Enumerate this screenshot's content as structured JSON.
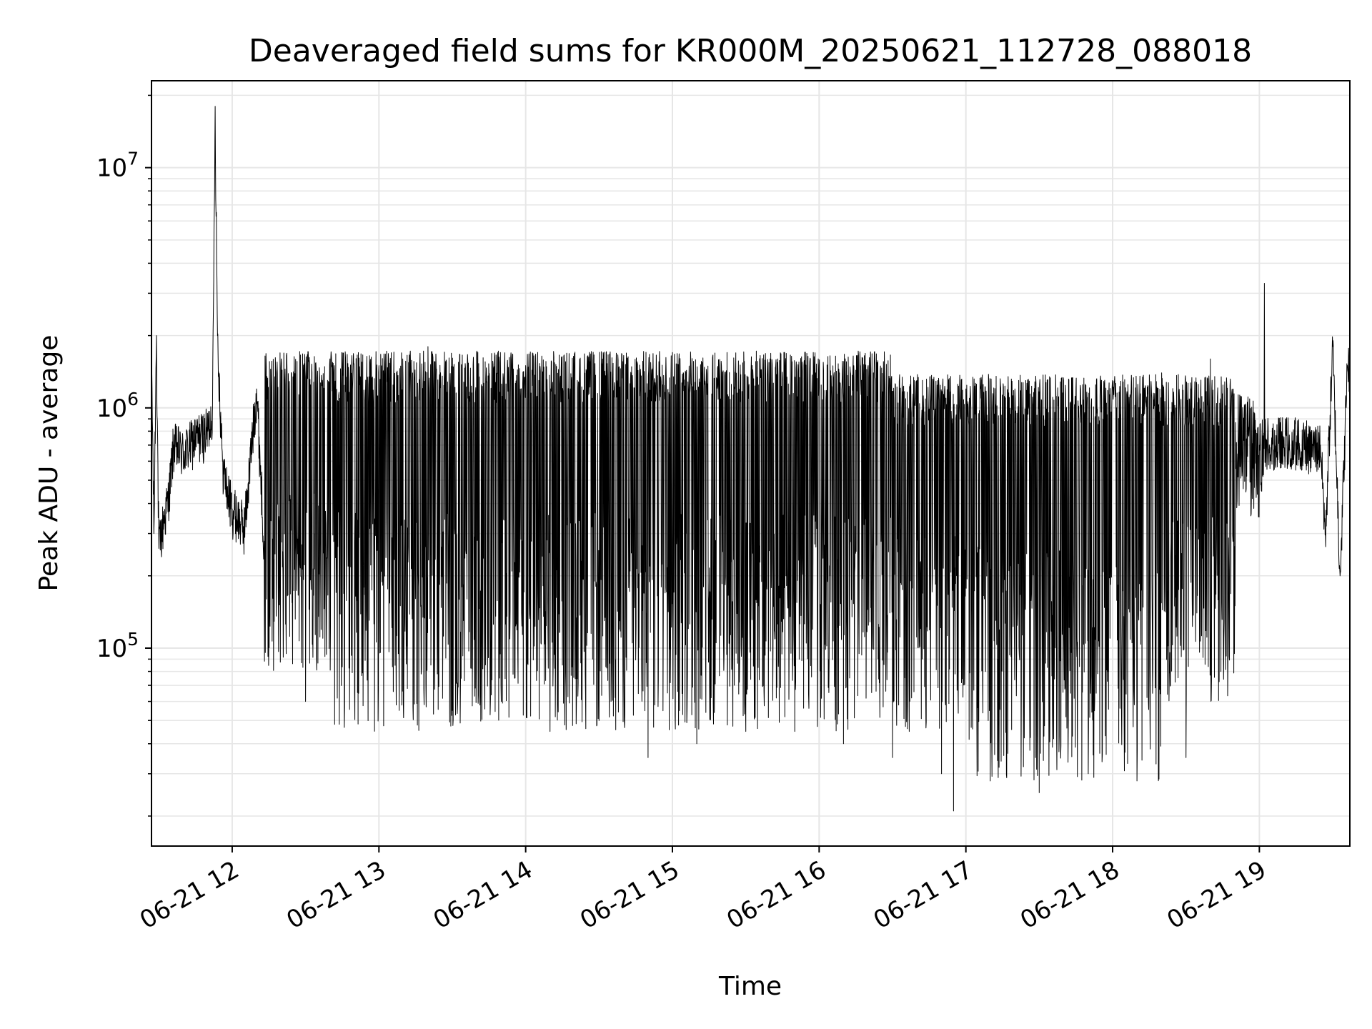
{
  "chart_data": {
    "type": "line",
    "title": "Deaveraged field sums for KR000M_20250621_112728_088018",
    "xlabel": "Time",
    "ylabel": "Peak ADU - average",
    "yscale": "log",
    "ylim": [
      15000,
      23000000
    ],
    "xlim": [
      "2025-06-21 11:27",
      "2025-06-21 19:37"
    ],
    "x_ticks": [
      {
        "value": "2025-06-21 12:00",
        "label": "06-21 12"
      },
      {
        "value": "2025-06-21 13:00",
        "label": "06-21 13"
      },
      {
        "value": "2025-06-21 14:00",
        "label": "06-21 14"
      },
      {
        "value": "2025-06-21 15:00",
        "label": "06-21 15"
      },
      {
        "value": "2025-06-21 16:00",
        "label": "06-21 16"
      },
      {
        "value": "2025-06-21 17:00",
        "label": "06-21 17"
      },
      {
        "value": "2025-06-21 18:00",
        "label": "06-21 18"
      },
      {
        "value": "2025-06-21 19:00",
        "label": "06-21 19"
      }
    ],
    "y_ticks": [
      {
        "value": 100000,
        "base": "10",
        "exp": "5"
      },
      {
        "value": 1000000,
        "base": "10",
        "exp": "6"
      },
      {
        "value": 10000000,
        "base": "10",
        "exp": "7"
      }
    ],
    "grid": true,
    "line_color": "#000000",
    "grid_color": "#e6e6e6",
    "series": [
      {
        "x": [
          "2025-06-21 11:27",
          "2025-06-21 11:28",
          "2025-06-21 11:29",
          "2025-06-21 11:30",
          "2025-06-21 11:32",
          "2025-06-21 11:34",
          "2025-06-21 11:36",
          "2025-06-21 11:40",
          "2025-06-21 11:45",
          "2025-06-21 11:50",
          "2025-06-21 11:52",
          "2025-06-21 11:53",
          "2025-06-21 11:54",
          "2025-06-21 11:56",
          "2025-06-21 11:58",
          "2025-06-21 12:00",
          "2025-06-21 12:05",
          "2025-06-21 12:10",
          "2025-06-21 12:15",
          "2025-06-21 12:20",
          "2025-06-21 12:30",
          "2025-06-21 12:40",
          "2025-06-21 12:50",
          "2025-06-21 13:00",
          "2025-06-21 13:10",
          "2025-06-21 13:20",
          "2025-06-21 13:30",
          "2025-06-21 13:40",
          "2025-06-21 13:50",
          "2025-06-21 14:00",
          "2025-06-21 14:10",
          "2025-06-21 14:20",
          "2025-06-21 14:30",
          "2025-06-21 14:40",
          "2025-06-21 14:50",
          "2025-06-21 15:00",
          "2025-06-21 15:10",
          "2025-06-21 15:20",
          "2025-06-21 15:30",
          "2025-06-21 15:40",
          "2025-06-21 15:50",
          "2025-06-21 16:00",
          "2025-06-21 16:10",
          "2025-06-21 16:20",
          "2025-06-21 16:30",
          "2025-06-21 16:40",
          "2025-06-21 16:50",
          "2025-06-21 16:55",
          "2025-06-21 17:00",
          "2025-06-21 17:10",
          "2025-06-21 17:20",
          "2025-06-21 17:30",
          "2025-06-21 17:40",
          "2025-06-21 17:50",
          "2025-06-21 18:00",
          "2025-06-21 18:10",
          "2025-06-21 18:20",
          "2025-06-21 18:30",
          "2025-06-21 18:40",
          "2025-06-21 18:50",
          "2025-06-21 19:00",
          "2025-06-21 19:02",
          "2025-06-21 19:05",
          "2025-06-21 19:10",
          "2025-06-21 19:15",
          "2025-06-21 19:20",
          "2025-06-21 19:25",
          "2025-06-21 19:27",
          "2025-06-21 19:30",
          "2025-06-21 19:33",
          "2025-06-21 19:36"
        ],
        "y": [
          1800000,
          300000,
          2000000,
          260000,
          340000,
          420000,
          700000,
          650000,
          750000,
          800000,
          1000000,
          18000000,
          2000000,
          600000,
          450000,
          380000,
          320000,
          1200000,
          110000,
          1600000,
          60000,
          1600000,
          65000,
          1500000,
          60000,
          1800000,
          55000,
          1700000,
          60000,
          1500000,
          45000,
          1500000,
          50000,
          1500000,
          35000,
          1700000,
          40000,
          1500000,
          45000,
          1600000,
          45000,
          1500000,
          40000,
          1500000,
          35000,
          1300000,
          30000,
          21000,
          1200000,
          28000,
          1200000,
          25000,
          1300000,
          30000,
          1300000,
          28000,
          1400000,
          35000,
          1600000,
          150000,
          700000,
          3300000,
          750000,
          700000,
          720000,
          680000,
          700000,
          300000,
          1800000,
          200000,
          1500000
        ]
      }
    ]
  }
}
